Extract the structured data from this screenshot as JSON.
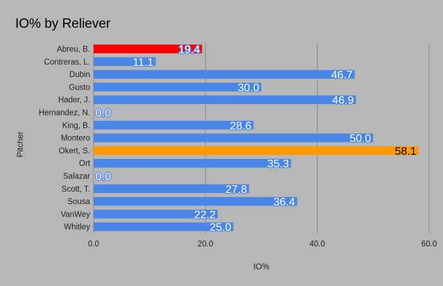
{
  "chart_data": {
    "type": "bar",
    "orientation": "horizontal",
    "title": "IO% by Reliever",
    "xlabel": "IO%",
    "ylabel": "Pitcher",
    "xlim": [
      0,
      60
    ],
    "xticks": [
      0,
      20,
      40,
      60
    ],
    "xtick_labels": [
      "0.0",
      "20.0",
      "40.0",
      "60.0"
    ],
    "grid": true,
    "categories": [
      "Abreu, B.",
      "Contreras, L.",
      "Dubin",
      "Gusto",
      "Hader, J.",
      "Hernandez, N.",
      "King, B.",
      "Montero",
      "Okert, S.",
      "Ort",
      "Salazar",
      "Scott, T.",
      "Sousa",
      "VanWey",
      "Whitley"
    ],
    "values": [
      19.4,
      11.1,
      46.7,
      30.0,
      46.9,
      0.0,
      28.6,
      50.0,
      58.1,
      35.3,
      0.0,
      27.8,
      36.4,
      22.2,
      25.0
    ],
    "data_labels": [
      "19.4",
      "11.1",
      "46.7",
      "30.0",
      "46.9",
      "0.0",
      "28.6",
      "50.0",
      "58.1",
      "35.3",
      "0.0",
      "27.8",
      "36.4",
      "22.2",
      "25.0"
    ],
    "bar_colors": [
      "#ff0000",
      "#4a86e8",
      "#4a86e8",
      "#4a86e8",
      "#4a86e8",
      "#4a86e8",
      "#4a86e8",
      "#4a86e8",
      "#ff9900",
      "#4a86e8",
      "#4a86e8",
      "#4a86e8",
      "#4a86e8",
      "#4a86e8",
      "#4a86e8"
    ],
    "label_styles": [
      "light",
      "light",
      "light",
      "light",
      "light",
      "light",
      "light",
      "light",
      "dark",
      "light",
      "light",
      "light",
      "light",
      "light",
      "light"
    ]
  },
  "colors": {
    "background": "#b7b7b7",
    "gridline": "#888888",
    "default_bar": "#4a86e8",
    "highlight_red": "#ff0000",
    "highlight_orange": "#ff9900"
  }
}
